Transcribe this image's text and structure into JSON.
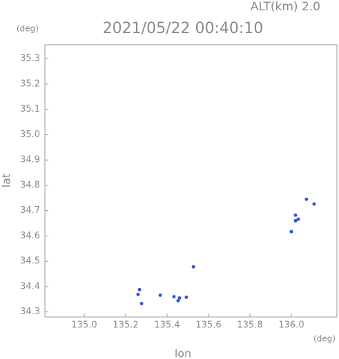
{
  "chart_data": {
    "type": "scatter",
    "title": "2021/05/22 00:40:10",
    "annotation": "ALT(km) 2.0",
    "y_unit": "(deg)",
    "x_unit": "(deg)",
    "xlabel": "lon",
    "ylabel": "lat",
    "xlim": [
      134.81,
      136.22
    ],
    "ylim": [
      34.28,
      35.355
    ],
    "xticks": [
      {
        "value": 135,
        "label": "135.0"
      },
      135.2,
      135.4,
      135.6,
      135.8,
      {
        "value": 136,
        "label": "136.0"
      }
    ],
    "yticks": [
      34.3,
      34.4,
      34.5,
      34.6,
      34.7,
      34.8,
      34.9,
      {
        "value": 35,
        "label": "35.0"
      },
      35.1,
      35.2,
      35.3
    ],
    "series": [
      {
        "color": "#3355dd",
        "x": [
          135.277,
          135.26,
          135.267,
          135.367,
          135.433,
          135.46,
          135.493,
          135.453,
          135.527,
          136.0,
          136.02,
          136.033,
          136.02,
          136.073,
          136.11
        ],
        "values": [
          34.333,
          34.369,
          34.388,
          34.366,
          34.36,
          34.355,
          34.358,
          34.344,
          34.478,
          34.617,
          34.66,
          34.666,
          34.682,
          34.745,
          34.726
        ]
      }
    ]
  }
}
